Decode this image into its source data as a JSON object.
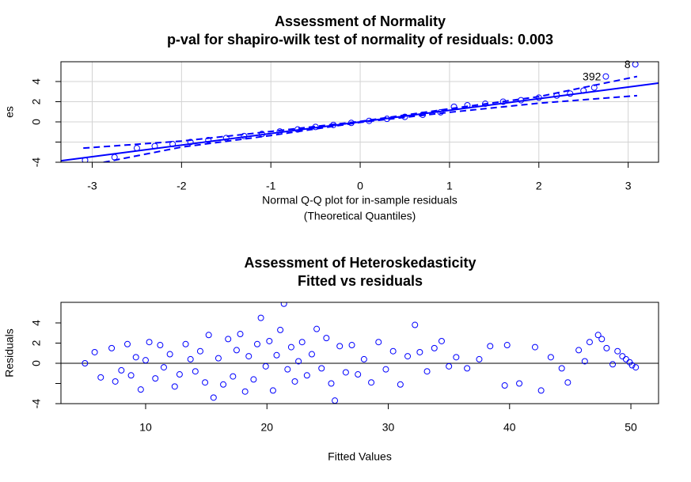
{
  "chart_data": [
    {
      "type": "scatter",
      "title": "Assessment of Normality",
      "subtitle": "p-val for shapiro-wilk test of normality of residuals: 0.003",
      "xlabel": [
        "Normal Q-Q plot for in-sample residuals",
        "(Theoretical Quantiles)"
      ],
      "ylabel": "es",
      "xlim": [
        -3.35,
        3.34
      ],
      "ylim": [
        -4,
        5.96
      ],
      "xticks": [
        -3,
        -2,
        -1,
        0,
        1,
        2,
        3
      ],
      "yticks": [
        -4,
        {
          "value": -2,
          "label": null
        },
        0,
        2,
        4
      ],
      "grid": true,
      "color": "#0000ff",
      "x": [
        -3.08,
        -2.75,
        -2.5,
        -2.3,
        -2.1,
        -1.9,
        -1.7,
        -1.5,
        -1.3,
        -1.1,
        -0.9,
        -0.7,
        -0.5,
        -0.3,
        -0.1,
        0.1,
        0.3,
        0.5,
        0.7,
        0.9,
        1.05,
        1.2,
        1.4,
        1.6,
        1.8,
        2.0,
        2.2,
        2.35,
        2.5,
        2.62,
        2.75,
        3.08
      ],
      "values": [
        -3.8,
        -3.5,
        -2.6,
        -2.4,
        -2.2,
        -2.0,
        -1.8,
        -1.6,
        -1.4,
        -1.2,
        -0.95,
        -0.75,
        -0.5,
        -0.3,
        -0.1,
        0.1,
        0.3,
        0.5,
        0.7,
        0.95,
        1.5,
        1.65,
        1.8,
        2.0,
        2.15,
        2.4,
        2.6,
        2.8,
        3.1,
        3.4,
        4.5,
        5.7
      ],
      "lines": [
        {
          "x": [
            -3.35,
            3.34
          ],
          "y": [
            -3.85,
            3.84
          ],
          "color": "#0000ff",
          "style": "solid"
        },
        {
          "x": [
            -3.1,
            -2,
            -1,
            0,
            1,
            2,
            3.1
          ],
          "y": [
            -2.6,
            -1.9,
            -0.95,
            0.05,
            1.3,
            2.5,
            4.5
          ],
          "color": "#0000ff",
          "style": "dashed"
        },
        {
          "x": [
            -3.1,
            -2,
            -1,
            0,
            1,
            2,
            3.1
          ],
          "y": [
            -4.4,
            -2.5,
            -1.35,
            -0.05,
            0.95,
            1.85,
            2.6
          ],
          "color": "#0000ff",
          "style": "dashed"
        }
      ],
      "annotations": [
        {
          "text": "392",
          "x": 2.75,
          "y": 4.5
        },
        {
          "text": "8",
          "x": 3.08,
          "y": 5.7
        }
      ]
    },
    {
      "type": "scatter",
      "title": "Assessment of Heteroskedasticity",
      "subtitle": "Fitted vs residuals",
      "xlabel": [
        "Fitted Values"
      ],
      "ylabel": "Residuals",
      "xlim": [
        3.02,
        52.28
      ],
      "ylim": [
        -4,
        6.04
      ],
      "xticks": [
        10,
        20,
        30,
        40,
        50
      ],
      "yticks": [
        -4,
        {
          "value": -2,
          "label": null
        },
        0,
        2,
        4
      ],
      "grid": false,
      "color": "#0000ff",
      "hline": 0,
      "x": [
        5,
        5.8,
        6.3,
        7.2,
        7.5,
        8,
        8.5,
        8.8,
        9.2,
        9.6,
        10,
        10.3,
        10.8,
        11.2,
        11.5,
        12,
        12.4,
        12.8,
        13.3,
        13.7,
        14.1,
        14.5,
        14.9,
        15.2,
        15.6,
        16,
        16.4,
        16.8,
        17.2,
        17.5,
        17.8,
        18.2,
        18.5,
        18.9,
        19.2,
        19.5,
        19.9,
        20.2,
        20.5,
        20.8,
        21.1,
        21.4,
        21.7,
        22,
        22.3,
        22.6,
        22.9,
        23.3,
        23.7,
        24.1,
        24.5,
        24.9,
        25.3,
        25.6,
        26,
        26.5,
        27,
        27.5,
        28,
        28.6,
        29.2,
        29.8,
        30.4,
        31,
        31.6,
        32.2,
        32.6,
        33.2,
        33.8,
        34.4,
        35,
        35.6,
        36.5,
        37.5,
        38.4,
        39.6,
        39.8,
        40.8,
        42.1,
        42.6,
        43.4,
        44.3,
        44.8,
        45.7,
        46.2,
        46.6,
        47.3,
        47.6,
        48,
        48.5,
        48.9,
        49.3,
        49.6,
        49.9,
        50.1,
        50.4
      ],
      "values": [
        0,
        1.1,
        -1.4,
        1.5,
        -1.8,
        -0.7,
        1.9,
        -1.2,
        0.6,
        -2.6,
        0.3,
        2.1,
        -1.5,
        1.8,
        -0.4,
        0.9,
        -2.3,
        -1.1,
        1.9,
        0.4,
        -0.8,
        1.2,
        -1.9,
        2.8,
        -3.4,
        0.5,
        -2.1,
        2.4,
        -1.3,
        1.3,
        2.9,
        -2.8,
        0.7,
        -1.6,
        1.9,
        4.5,
        -0.3,
        2.2,
        -2.7,
        0.8,
        3.3,
        5.9,
        -0.6,
        1.6,
        -1.8,
        0.2,
        2.1,
        -1.2,
        0.9,
        3.4,
        -0.5,
        2.5,
        -2,
        -3.7,
        1.7,
        -0.9,
        1.8,
        -1.1,
        0.4,
        -1.9,
        2.1,
        -0.6,
        1.2,
        -2.1,
        0.7,
        3.8,
        1.1,
        -0.8,
        1.5,
        2.2,
        -0.3,
        0.6,
        -0.5,
        0.4,
        1.7,
        -2.2,
        1.8,
        -2,
        1.6,
        -2.7,
        0.6,
        -0.5,
        -1.9,
        1.3,
        0.2,
        2.1,
        2.8,
        2.4,
        1.5,
        -0.1,
        1.2,
        0.7,
        0.4,
        0.1,
        -0.2,
        -0.4
      ]
    }
  ]
}
